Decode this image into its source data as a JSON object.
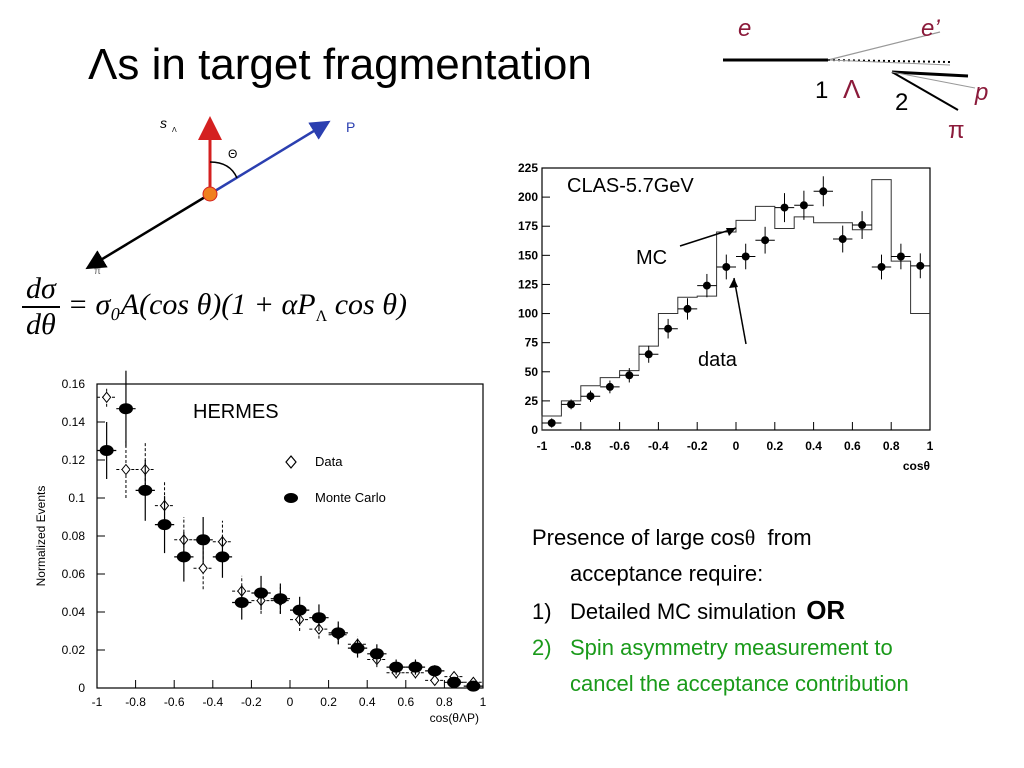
{
  "slide": {
    "title": "Λs in target fragmentation",
    "formula": {
      "numerator": "dσ",
      "denominator": "dθ",
      "rhs": "= σ₀A(cos θ)(1 + αP",
      "rhs_sub": "Λ",
      "rhs_tail": " cos θ)"
    },
    "diagram": {
      "e": "e",
      "e_prime": "e’",
      "one": "1",
      "lambda": "Λ",
      "two": "2",
      "p": "p",
      "pi": "π"
    },
    "spin": {
      "s": "s",
      "s_sub": "Λ",
      "theta": "Θ",
      "p": "P",
      "pi": "π"
    },
    "notes": {
      "line1a": "Presence of large cos",
      "line1_theta": "θ",
      "line1b": "  from",
      "line2": "acceptance require:",
      "item1_num": "1)",
      "item1": "Detailed MC simulation",
      "or": "OR",
      "item2_num": "2)",
      "item2a": "Spin asymmetry measurement to",
      "item2b": "cancel the acceptance contribution"
    },
    "colors": {
      "red": "#d42020",
      "blue": "#2b3fb0",
      "green": "#1a9a1a",
      "magenta": "#8b1a3a"
    }
  },
  "chart_data": [
    {
      "type": "scatter",
      "title": "CLAS-5.7GeV",
      "xlabel": "cosθ",
      "ylabel": "",
      "xlim": [
        -1,
        1
      ],
      "ylim": [
        0,
        225
      ],
      "xticks": [
        -1,
        -0.8,
        -0.6,
        -0.4,
        -0.2,
        0,
        0.2,
        0.4,
        0.6,
        0.8,
        1
      ],
      "xtick_labels": [
        "-1",
        "-0.8",
        "-0.6",
        "-0.4",
        "-0.2",
        "0",
        "0.2",
        "0.4",
        "0.6",
        "0.8",
        "1"
      ],
      "yticks": [
        0,
        25,
        50,
        75,
        100,
        125,
        150,
        175,
        200,
        225
      ],
      "ytick_labels": [
        "0",
        "25",
        "50",
        "75",
        "100",
        "125",
        "150",
        "175",
        "200",
        "225"
      ],
      "annotations": [
        "MC",
        "data"
      ],
      "series": [
        {
          "name": "data",
          "style": "points",
          "x": [
            -0.95,
            -0.85,
            -0.75,
            -0.65,
            -0.55,
            -0.45,
            -0.35,
            -0.25,
            -0.15,
            -0.05,
            0.05,
            0.15,
            0.25,
            0.35,
            0.45,
            0.55,
            0.65,
            0.75,
            0.85,
            0.95
          ],
          "y": [
            6,
            22,
            29,
            37,
            47,
            65,
            87,
            104,
            124,
            140,
            149,
            163,
            191,
            193,
            205,
            164,
            176,
            140,
            149,
            141
          ]
        },
        {
          "name": "MC",
          "style": "step",
          "bin_edges": [
            -1,
            -0.9,
            -0.8,
            -0.7,
            -0.6,
            -0.5,
            -0.4,
            -0.3,
            -0.2,
            -0.1,
            0,
            0.1,
            0.2,
            0.3,
            0.4,
            0.5,
            0.6,
            0.7,
            0.8,
            0.9,
            1
          ],
          "values": [
            12,
            25,
            38,
            45,
            51,
            72,
            100,
            114,
            115,
            170,
            180,
            192,
            173,
            183,
            178,
            178,
            172,
            215,
            145,
            100
          ]
        }
      ]
    },
    {
      "type": "scatter",
      "title": "HERMES",
      "xlabel": "cos(θΛP)",
      "ylabel": "Normalized Events",
      "xlim": [
        -1,
        1
      ],
      "ylim": [
        0,
        0.16
      ],
      "xticks": [
        -1,
        -0.8,
        -0.6,
        -0.4,
        -0.2,
        0,
        0.2,
        0.4,
        0.6,
        0.8,
        1
      ],
      "xtick_labels": [
        "-1",
        "-0.8",
        "-0.6",
        "-0.4",
        "-0.2",
        "0",
        "0.2",
        "0.4",
        "0.6",
        "0.8",
        "1"
      ],
      "yticks": [
        0,
        0.02,
        0.04,
        0.06,
        0.08,
        0.1,
        0.12,
        0.14,
        0.16
      ],
      "ytick_labels": [
        "0",
        "0.02",
        "0.04",
        "0.06",
        "0.08",
        "0.1",
        "0.12",
        "0.14",
        "0.16"
      ],
      "legend": "right",
      "series": [
        {
          "name": "Data",
          "marker": "open-diamond",
          "x": [
            -0.95,
            -0.85,
            -0.75,
            -0.65,
            -0.55,
            -0.45,
            -0.35,
            -0.25,
            -0.15,
            -0.05,
            0.05,
            0.15,
            0.25,
            0.35,
            0.45,
            0.55,
            0.65,
            0.75,
            0.85,
            0.95
          ],
          "y": [
            0.153,
            0.115,
            0.115,
            0.096,
            0.078,
            0.063,
            0.077,
            0.051,
            0.046,
            0.046,
            0.036,
            0.031,
            0.028,
            0.023,
            0.015,
            0.008,
            0.008,
            0.004,
            0.006,
            0.003
          ],
          "err": [
            0.005,
            0.015,
            0.014,
            0.013,
            0.012,
            0.011,
            0.011,
            0.008,
            0.007,
            0.007,
            0.006,
            0.005,
            0.005,
            0.004,
            0.004,
            0.003,
            0.003,
            0.002,
            0.002,
            0.002
          ]
        },
        {
          "name": "Monte Carlo",
          "marker": "filled-circle",
          "x": [
            -0.95,
            -0.85,
            -0.75,
            -0.65,
            -0.55,
            -0.45,
            -0.35,
            -0.25,
            -0.15,
            -0.05,
            0.05,
            0.15,
            0.25,
            0.35,
            0.45,
            0.55,
            0.65,
            0.75,
            0.85,
            0.95
          ],
          "y": [
            0.125,
            0.147,
            0.104,
            0.086,
            0.069,
            0.078,
            0.069,
            0.045,
            0.05,
            0.047,
            0.041,
            0.037,
            0.029,
            0.021,
            0.018,
            0.011,
            0.011,
            0.009,
            0.003,
            0.001
          ],
          "err": [
            0.015,
            0.02,
            0.016,
            0.015,
            0.013,
            0.012,
            0.011,
            0.009,
            0.009,
            0.008,
            0.007,
            0.007,
            0.006,
            0.005,
            0.005,
            0.004,
            0.004,
            0.003,
            0.002,
            0.001
          ]
        }
      ]
    }
  ]
}
